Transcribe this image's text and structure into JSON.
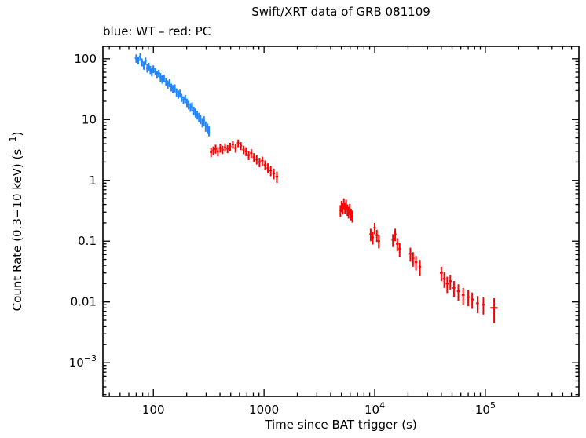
{
  "chart_data": {
    "type": "scatter",
    "title": "Swift/XRT data of GRB 081109",
    "legend": "blue: WT – red: PC",
    "xlabel": "Time since BAT trigger (s)",
    "ylabel_segments": [
      {
        "t": "Count Rate (0.3−10 keV) (s"
      },
      {
        "t": "−1",
        "sup": true
      },
      {
        "t": ")"
      }
    ],
    "xscale": "log",
    "yscale": "log",
    "xlim": [
      35,
      700000
    ],
    "ylim": [
      0.00028,
      160
    ],
    "grid": false,
    "legend_position": "top-left",
    "x_ticks": [
      {
        "v": 100,
        "label": "100"
      },
      {
        "v": 1000,
        "label": "1000"
      },
      {
        "v": 10000,
        "label": "10^4"
      },
      {
        "v": 100000,
        "label": "10^5"
      }
    ],
    "y_ticks": [
      {
        "v": 100,
        "label": "100"
      },
      {
        "v": 10,
        "label": "10"
      },
      {
        "v": 1,
        "label": "1"
      },
      {
        "v": 0.1,
        "label": "0.1"
      },
      {
        "v": 0.01,
        "label": "0.01"
      },
      {
        "v": 0.001,
        "label": "10^−3"
      }
    ],
    "series": [
      {
        "name": "WT",
        "color": "#1f86ff",
        "points": [
          [
            70,
            102,
            2,
            16
          ],
          [
            73,
            95,
            2,
            14
          ],
          [
            76,
            108,
            2,
            16
          ],
          [
            79,
            88,
            2,
            13
          ],
          [
            82,
            78,
            2,
            12
          ],
          [
            85,
            92,
            2,
            13
          ],
          [
            88,
            70,
            2,
            11
          ],
          [
            91,
            75,
            2,
            11
          ],
          [
            94,
            66,
            2,
            10
          ],
          [
            97,
            60,
            2,
            9
          ],
          [
            100,
            68,
            3,
            10
          ],
          [
            104,
            62,
            3,
            9
          ],
          [
            108,
            55,
            3,
            8
          ],
          [
            112,
            58,
            3,
            8
          ],
          [
            116,
            50,
            3,
            8
          ],
          [
            120,
            46,
            3,
            7
          ],
          [
            125,
            48,
            3,
            7
          ],
          [
            130,
            42,
            3,
            6
          ],
          [
            135,
            38,
            3,
            6
          ],
          [
            140,
            40,
            3,
            6
          ],
          [
            145,
            34,
            3,
            5
          ],
          [
            150,
            32,
            3,
            5
          ],
          [
            156,
            33,
            3,
            5
          ],
          [
            162,
            28,
            3,
            4.5
          ],
          [
            168,
            26,
            3,
            4
          ],
          [
            174,
            27,
            3,
            4
          ],
          [
            180,
            23,
            4,
            3.5
          ],
          [
            187,
            21,
            4,
            3.2
          ],
          [
            194,
            22,
            4,
            3.3
          ],
          [
            201,
            19,
            4,
            3
          ],
          [
            208,
            17.5,
            4,
            2.8
          ],
          [
            216,
            16,
            4,
            2.6
          ],
          [
            224,
            16.5,
            4,
            2.6
          ],
          [
            232,
            14,
            4,
            2.3
          ],
          [
            240,
            13,
            4,
            2.2
          ],
          [
            249,
            12,
            4,
            2
          ],
          [
            258,
            11,
            5,
            1.9
          ],
          [
            267,
            10.2,
            5,
            1.8
          ],
          [
            277,
            9,
            5,
            1.6
          ],
          [
            287,
            9.6,
            5,
            1.7
          ],
          [
            297,
            7.8,
            5,
            1.5
          ],
          [
            308,
            7.2,
            5,
            1.4
          ],
          [
            318,
            6.6,
            5,
            1.3
          ]
        ]
      },
      {
        "name": "PC",
        "color": "#ff0000",
        "points": [
          [
            332,
            2.9,
            8,
            0.5
          ],
          [
            348,
            3.1,
            8,
            0.5
          ],
          [
            365,
            3.3,
            9,
            0.55
          ],
          [
            383,
            3.0,
            9,
            0.5
          ],
          [
            402,
            3.4,
            10,
            0.55
          ],
          [
            422,
            3.2,
            10,
            0.5
          ],
          [
            444,
            3.5,
            11,
            0.55
          ],
          [
            468,
            3.3,
            11,
            0.5
          ],
          [
            494,
            3.6,
            12,
            0.55
          ],
          [
            522,
            3.9,
            13,
            0.6
          ],
          [
            552,
            3.4,
            14,
            0.55
          ],
          [
            584,
            4.1,
            15,
            0.6
          ],
          [
            618,
            3.7,
            16,
            0.55
          ],
          [
            652,
            3.2,
            16,
            0.5
          ],
          [
            688,
            3.0,
            17,
            0.5
          ],
          [
            726,
            2.6,
            18,
            0.45
          ],
          [
            766,
            2.8,
            19,
            0.45
          ],
          [
            810,
            2.4,
            20,
            0.4
          ],
          [
            858,
            2.2,
            22,
            0.38
          ],
          [
            910,
            2.0,
            24,
            0.35
          ],
          [
            964,
            2.1,
            26,
            0.35
          ],
          [
            1022,
            1.8,
            28,
            0.32
          ],
          [
            1084,
            1.6,
            30,
            0.3
          ],
          [
            1150,
            1.45,
            32,
            0.28
          ],
          [
            1225,
            1.3,
            35,
            0.26
          ],
          [
            1305,
            1.15,
            38,
            0.24
          ],
          [
            4900,
            0.32,
            90,
            0.07
          ],
          [
            5020,
            0.38,
            90,
            0.08
          ],
          [
            5140,
            0.35,
            95,
            0.075
          ],
          [
            5260,
            0.42,
            95,
            0.085
          ],
          [
            5390,
            0.36,
            100,
            0.075
          ],
          [
            5520,
            0.4,
            100,
            0.08
          ],
          [
            5660,
            0.33,
            105,
            0.07
          ],
          [
            5800,
            0.3,
            105,
            0.065
          ],
          [
            5950,
            0.34,
            110,
            0.07
          ],
          [
            6110,
            0.28,
            115,
            0.06
          ],
          [
            6280,
            0.26,
            120,
            0.058
          ],
          [
            9200,
            0.13,
            250,
            0.03
          ],
          [
            9600,
            0.115,
            260,
            0.027
          ],
          [
            10000,
            0.165,
            270,
            0.035
          ],
          [
            10450,
            0.125,
            280,
            0.028
          ],
          [
            10900,
            0.1,
            300,
            0.024
          ],
          [
            14600,
            0.105,
            400,
            0.025
          ],
          [
            15300,
            0.13,
            420,
            0.03
          ],
          [
            16000,
            0.09,
            440,
            0.022
          ],
          [
            16800,
            0.075,
            460,
            0.02
          ],
          [
            21000,
            0.062,
            600,
            0.016
          ],
          [
            22200,
            0.052,
            620,
            0.014
          ],
          [
            23600,
            0.045,
            650,
            0.012
          ],
          [
            25600,
            0.038,
            700,
            0.011
          ],
          [
            40000,
            0.03,
            1200,
            0.008
          ],
          [
            42500,
            0.024,
            1250,
            0.007
          ],
          [
            45200,
            0.02,
            1300,
            0.006
          ],
          [
            48200,
            0.022,
            1400,
            0.006
          ],
          [
            52000,
            0.017,
            1500,
            0.005
          ],
          [
            57000,
            0.015,
            1700,
            0.0045
          ],
          [
            63000,
            0.013,
            1900,
            0.004
          ],
          [
            70000,
            0.012,
            2100,
            0.0035
          ],
          [
            76000,
            0.011,
            2300,
            0.0033
          ],
          [
            85000,
            0.0095,
            2600,
            0.003
          ],
          [
            96000,
            0.009,
            3000,
            0.0028
          ],
          [
            120000,
            0.008,
            9000,
            0.0035
          ]
        ]
      }
    ]
  }
}
